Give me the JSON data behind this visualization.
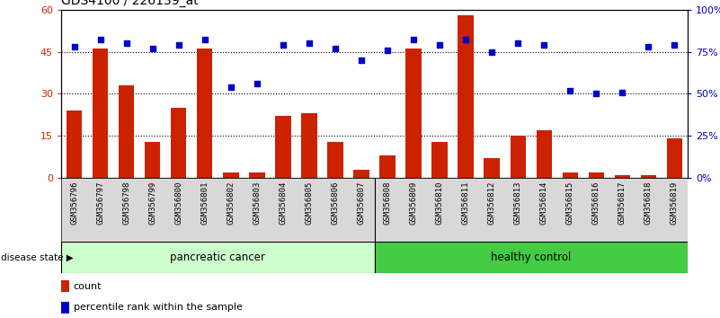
{
  "title": "GDS4100 / 226139_at",
  "samples": [
    "GSM356796",
    "GSM356797",
    "GSM356798",
    "GSM356799",
    "GSM356800",
    "GSM356801",
    "GSM356802",
    "GSM356803",
    "GSM356804",
    "GSM356805",
    "GSM356806",
    "GSM356807",
    "GSM356808",
    "GSM356809",
    "GSM356810",
    "GSM356811",
    "GSM356812",
    "GSM356813",
    "GSM356814",
    "GSM356815",
    "GSM356816",
    "GSM356817",
    "GSM356818",
    "GSM356819"
  ],
  "counts": [
    24,
    46,
    33,
    13,
    25,
    46,
    2,
    2,
    22,
    23,
    13,
    3,
    8,
    46,
    13,
    58,
    7,
    15,
    17,
    2,
    2,
    1,
    1,
    14
  ],
  "percentiles": [
    78,
    82,
    80,
    77,
    79,
    82,
    54,
    56,
    79,
    80,
    77,
    70,
    76,
    82,
    79,
    82,
    75,
    80,
    79,
    52,
    50,
    51,
    78,
    79
  ],
  "pancreatic_split": 12,
  "bar_color": "#cc2200",
  "dot_color": "#0000cc",
  "pancreatic_color": "#ccffcc",
  "healthy_color": "#44cc44",
  "label_bg_color": "#d8d8d8",
  "ylim_left": [
    0,
    60
  ],
  "ylim_right": [
    0,
    100
  ],
  "yticks_left": [
    0,
    15,
    30,
    45,
    60
  ],
  "ytick_labels_left": [
    "0",
    "15",
    "30",
    "45",
    "60"
  ],
  "yticks_right": [
    0,
    25,
    50,
    75,
    100
  ],
  "ytick_labels_right": [
    "0%",
    "25%",
    "50%",
    "75%",
    "100%"
  ],
  "grid_values": [
    15,
    30,
    45
  ],
  "legend_count_label": "count",
  "legend_pct_label": "percentile rank within the sample",
  "disease_state_label": "disease state",
  "pancreatic_label": "pancreatic cancer",
  "healthy_label": "healthy control"
}
